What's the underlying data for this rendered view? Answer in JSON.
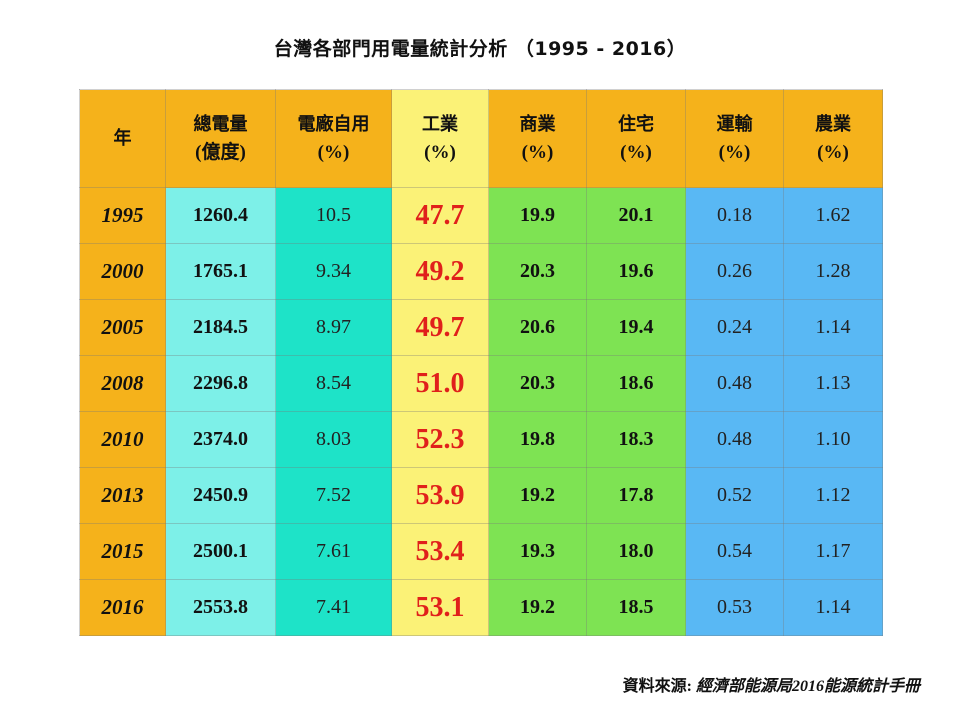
{
  "title": "台灣各部門用電量統計分析 （1995 - 2016）",
  "columns": [
    {
      "name": "年",
      "unit": ""
    },
    {
      "name": "總電量",
      "unit": "(億度)"
    },
    {
      "name": "電廠自用",
      "unit": "(%)"
    },
    {
      "name": "工業",
      "unit": "(%)"
    },
    {
      "name": "商業",
      "unit": "(%)"
    },
    {
      "name": "住宅",
      "unit": "(%)"
    },
    {
      "name": "運輸",
      "unit": "(%)"
    },
    {
      "name": "農業",
      "unit": "(%)"
    }
  ],
  "rows": [
    {
      "year": "1995",
      "total": "1260.4",
      "self": "10.5",
      "industry": "47.7",
      "commerce": "19.9",
      "residential": "20.1",
      "transport": "0.18",
      "agri": "1.62"
    },
    {
      "year": "2000",
      "total": "1765.1",
      "self": "9.34",
      "industry": "49.2",
      "commerce": "20.3",
      "residential": "19.6",
      "transport": "0.26",
      "agri": "1.28"
    },
    {
      "year": "2005",
      "total": "2184.5",
      "self": "8.97",
      "industry": "49.7",
      "commerce": "20.6",
      "residential": "19.4",
      "transport": "0.24",
      "agri": "1.14"
    },
    {
      "year": "2008",
      "total": "2296.8",
      "self": "8.54",
      "industry": "51.0",
      "commerce": "20.3",
      "residential": "18.6",
      "transport": "0.48",
      "agri": "1.13"
    },
    {
      "year": "2010",
      "total": "2374.0",
      "self": "8.03",
      "industry": "52.3",
      "commerce": "19.8",
      "residential": "18.3",
      "transport": "0.48",
      "agri": "1.10"
    },
    {
      "year": "2013",
      "total": "2450.9",
      "self": "7.52",
      "industry": "53.9",
      "commerce": "19.2",
      "residential": "17.8",
      "transport": "0.52",
      "agri": "1.12"
    },
    {
      "year": "2015",
      "total": "2500.1",
      "self": "7.61",
      "industry": "53.4",
      "commerce": "19.3",
      "residential": "18.0",
      "transport": "0.54",
      "agri": "1.17"
    },
    {
      "year": "2016",
      "total": "2553.8",
      "self": "7.41",
      "industry": "53.1",
      "commerce": "19.2",
      "residential": "18.5",
      "transport": "0.53",
      "agri": "1.14"
    }
  ],
  "source": {
    "label": "資料來源: ",
    "publication": "經濟部能源局2016能源統計手冊"
  },
  "colors": {
    "year_header": "#f5b21b",
    "total": "#7df0e8",
    "self_use": "#1ee3c8",
    "industry": "#fbf277",
    "industry_text": "#e0201b",
    "commerce_residential": "#7ee353",
    "transport_agri": "#59b8f4"
  }
}
